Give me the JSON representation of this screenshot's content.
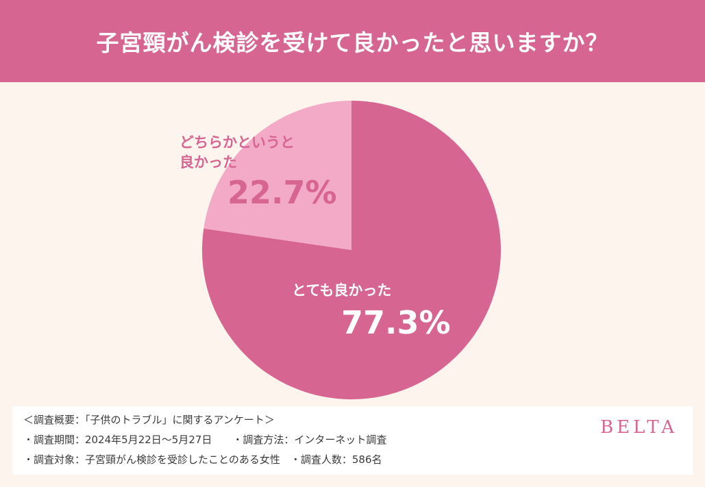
{
  "header": {
    "title": "子宮頸がん検診を受けて良かったと思いますか？"
  },
  "colors": {
    "header_bg": "#d76592",
    "background": "#fdf4ee",
    "major_slice": "#d76592",
    "minor_slice": "#f2aac6",
    "brand": "#d76592"
  },
  "chart_data": {
    "type": "pie",
    "title": "子宮頸がん検診を受けて良かったと思いますか？",
    "slices": [
      {
        "label": "とても良かった",
        "value": 77.3,
        "value_label": "77.3%",
        "color": "#d76592"
      },
      {
        "label": "どちらかというと良かった",
        "value": 22.7,
        "value_label": "22.7%",
        "color": "#f2aac6"
      }
    ],
    "start": "12 o'clock",
    "direction": "clockwise",
    "legend": "none"
  },
  "labels": {
    "minor_line1": "どちらかというと",
    "minor_line2": "良かった",
    "minor_pct": "22.7%",
    "major_name": "とても良かった",
    "major_pct": "77.3%"
  },
  "footer": {
    "notes": [
      "＜調査概要：「子供のトラブル」に関するアンケート＞",
      "・調査期間：2024年5月22日〜5月27日　　・調査方法：インターネット調査",
      "・調査対象：子宮頸がん検診を受診したことのある女性　・調査人数：586名"
    ],
    "brand": "BELTA"
  }
}
